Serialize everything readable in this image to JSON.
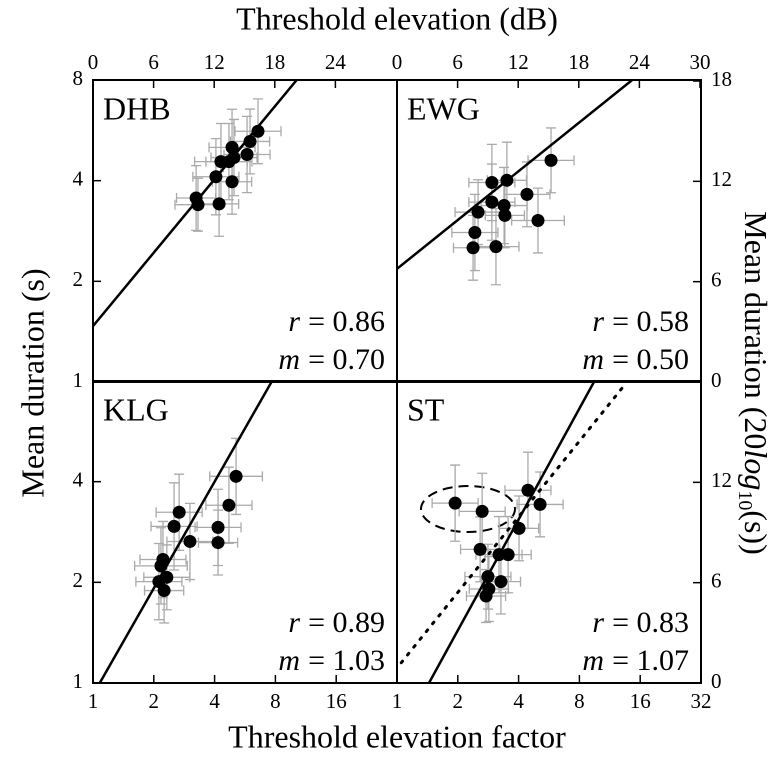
{
  "figure": {
    "title_top": "Threshold elevation (dB)",
    "title_bottom": "Threshold elevation factor",
    "title_left": "Mean duration (s)",
    "title_right": {
      "pre": "Mean duration (20",
      "italic": "log",
      "sub": "10",
      "post": "(s))"
    }
  },
  "chart_data": [
    {
      "type": "scatter",
      "title": "DHB",
      "xscale": "log",
      "yscale": "log",
      "xlim": [
        1,
        32
      ],
      "ylim": [
        1,
        8
      ],
      "yticks": [
        1,
        2,
        4,
        8
      ],
      "x2lim": [
        0,
        30.1
      ],
      "x2ticks": [
        0,
        6,
        12,
        18,
        24
      ],
      "color": "#000000",
      "error_color": "#aaaaaa",
      "x": [
        3.24,
        3.31,
        4.06,
        4.21,
        4.3,
        4.71,
        4.88,
        4.88,
        4.99,
        5.79,
        5.99,
        6.56
      ],
      "y": [
        3.55,
        3.39,
        4.11,
        3.41,
        4.56,
        4.56,
        5.03,
        3.97,
        4.69,
        4.79,
        5.24,
        5.62
      ],
      "xerr": [
        1.25,
        1.3,
        1.3,
        1.25,
        1.35,
        1.3,
        1.3,
        1.25,
        1.3,
        1.3,
        1.25,
        1.3
      ],
      "yerr": [
        1.25,
        1.2,
        1.3,
        1.25,
        1.3,
        1.3,
        1.3,
        1.25,
        1.3,
        1.3,
        1.25,
        1.25
      ],
      "lines": [
        {
          "x": [
            1,
            10.2
          ],
          "y": [
            1.47,
            8
          ],
          "style": "solid"
        }
      ],
      "annotations": [
        {
          "symbol": "r",
          "text": "= 0.86"
        },
        {
          "symbol": "m",
          "text": "= 0.70"
        }
      ]
    },
    {
      "type": "scatter",
      "title": "EWG",
      "xscale": "log",
      "yscale": "log",
      "xlim": [
        1,
        32
      ],
      "ylim": [
        1,
        8
      ],
      "x2lim": [
        0,
        30.1
      ],
      "x2ticks": [
        0,
        6,
        12,
        18,
        24,
        30
      ],
      "y2lim": [
        0,
        18.06
      ],
      "y2ticks": [
        0,
        6,
        12,
        18
      ],
      "color": "#000000",
      "error_color": "#aaaaaa",
      "x": [
        5.79,
        2.95,
        3.5,
        2.52,
        2.95,
        3.39,
        3.42,
        4.4,
        2.43,
        2.38,
        3.09,
        4.99
      ],
      "y": [
        4.6,
        3.95,
        4.01,
        3.22,
        3.45,
        3.37,
        3.15,
        3.64,
        2.8,
        2.52,
        2.54,
        3.04
      ],
      "xerr": [
        1.3,
        1.3,
        1.25,
        1.3,
        1.3,
        1.3,
        1.25,
        1.3,
        1.3,
        1.25,
        1.3,
        1.35
      ],
      "yerr": [
        1.25,
        1.3,
        1.3,
        1.25,
        1.3,
        1.3,
        1.25,
        1.25,
        1.3,
        1.25,
        1.3,
        1.25
      ],
      "lines": [
        {
          "x": [
            1,
            14.6
          ],
          "y": [
            2.18,
            8
          ],
          "style": "solid"
        }
      ],
      "annotations": [
        {
          "symbol": "r",
          "text": "= 0.58"
        },
        {
          "symbol": "m",
          "text": "= 0.50"
        }
      ]
    },
    {
      "type": "scatter",
      "title": "KLG",
      "xscale": "log",
      "yscale": "log",
      "xlim": [
        1,
        32
      ],
      "ylim": [
        1,
        8
      ],
      "yticks": [
        1,
        2,
        4
      ],
      "xticks": [
        1,
        2,
        4,
        8,
        16
      ],
      "color": "#000000",
      "error_color": "#aaaaaa",
      "x": [
        5.11,
        4.71,
        4.16,
        4.16,
        2.67,
        2.52,
        3.02,
        2.22,
        2.17,
        2.32,
        2.12,
        2.25
      ],
      "y": [
        4.15,
        3.4,
        2.92,
        2.63,
        3.24,
        2.94,
        2.65,
        2.34,
        2.24,
        2.07,
        2.01,
        1.89
      ],
      "xerr": [
        1.35,
        1.3,
        1.3,
        1.25,
        1.3,
        1.3,
        1.3,
        1.3,
        1.35,
        1.3,
        1.3,
        1.25
      ],
      "yerr": [
        1.3,
        1.3,
        1.3,
        1.25,
        1.3,
        1.35,
        1.3,
        1.3,
        1.3,
        1.25,
        1.3,
        1.25
      ],
      "lines": [
        {
          "x": [
            1.08,
            7.7
          ],
          "y": [
            1,
            8
          ],
          "style": "solid"
        }
      ],
      "annotations": [
        {
          "symbol": "r",
          "text": "= 0.89"
        },
        {
          "symbol": "m",
          "text": "= 1.03"
        }
      ]
    },
    {
      "type": "scatter",
      "title": "ST",
      "xscale": "log",
      "yscale": "log",
      "xlim": [
        1,
        32
      ],
      "ylim": [
        1,
        8
      ],
      "xticks": [
        1,
        2,
        4,
        8,
        16,
        32
      ],
      "y2lim": [
        0,
        18.06
      ],
      "y2ticks": [
        0,
        6,
        12
      ],
      "color": "#000000",
      "error_color": "#aaaaaa",
      "x": [
        1.94,
        2.64,
        4.45,
        5.11,
        4.02,
        2.58,
        3.55,
        3.2,
        3.27,
        2.82,
        2.85,
        2.76
      ],
      "y": [
        3.45,
        3.26,
        3.77,
        3.42,
        2.9,
        2.51,
        2.42,
        2.42,
        2.01,
        2.08,
        1.91,
        1.82
      ],
      "xerr": [
        1.3,
        1.3,
        1.3,
        1.3,
        1.25,
        1.25,
        1.3,
        1.3,
        1.25,
        1.3,
        1.25,
        1.25
      ],
      "yerr": [
        1.3,
        1.3,
        1.3,
        1.25,
        1.25,
        1.25,
        1.3,
        1.3,
        1.25,
        1.25,
        1.25,
        1.2
      ],
      "lines": [
        {
          "x": [
            1.44,
            9.5
          ],
          "y": [
            1,
            8
          ],
          "style": "solid"
        },
        {
          "x": [
            1.05,
            13.2
          ],
          "y": [
            1.15,
            7.7
          ],
          "style": "dotted"
        }
      ],
      "annotations": [
        {
          "symbol": "r",
          "text": "= 0.83"
        },
        {
          "symbol": "m",
          "text": "= 1.07"
        }
      ]
    }
  ]
}
